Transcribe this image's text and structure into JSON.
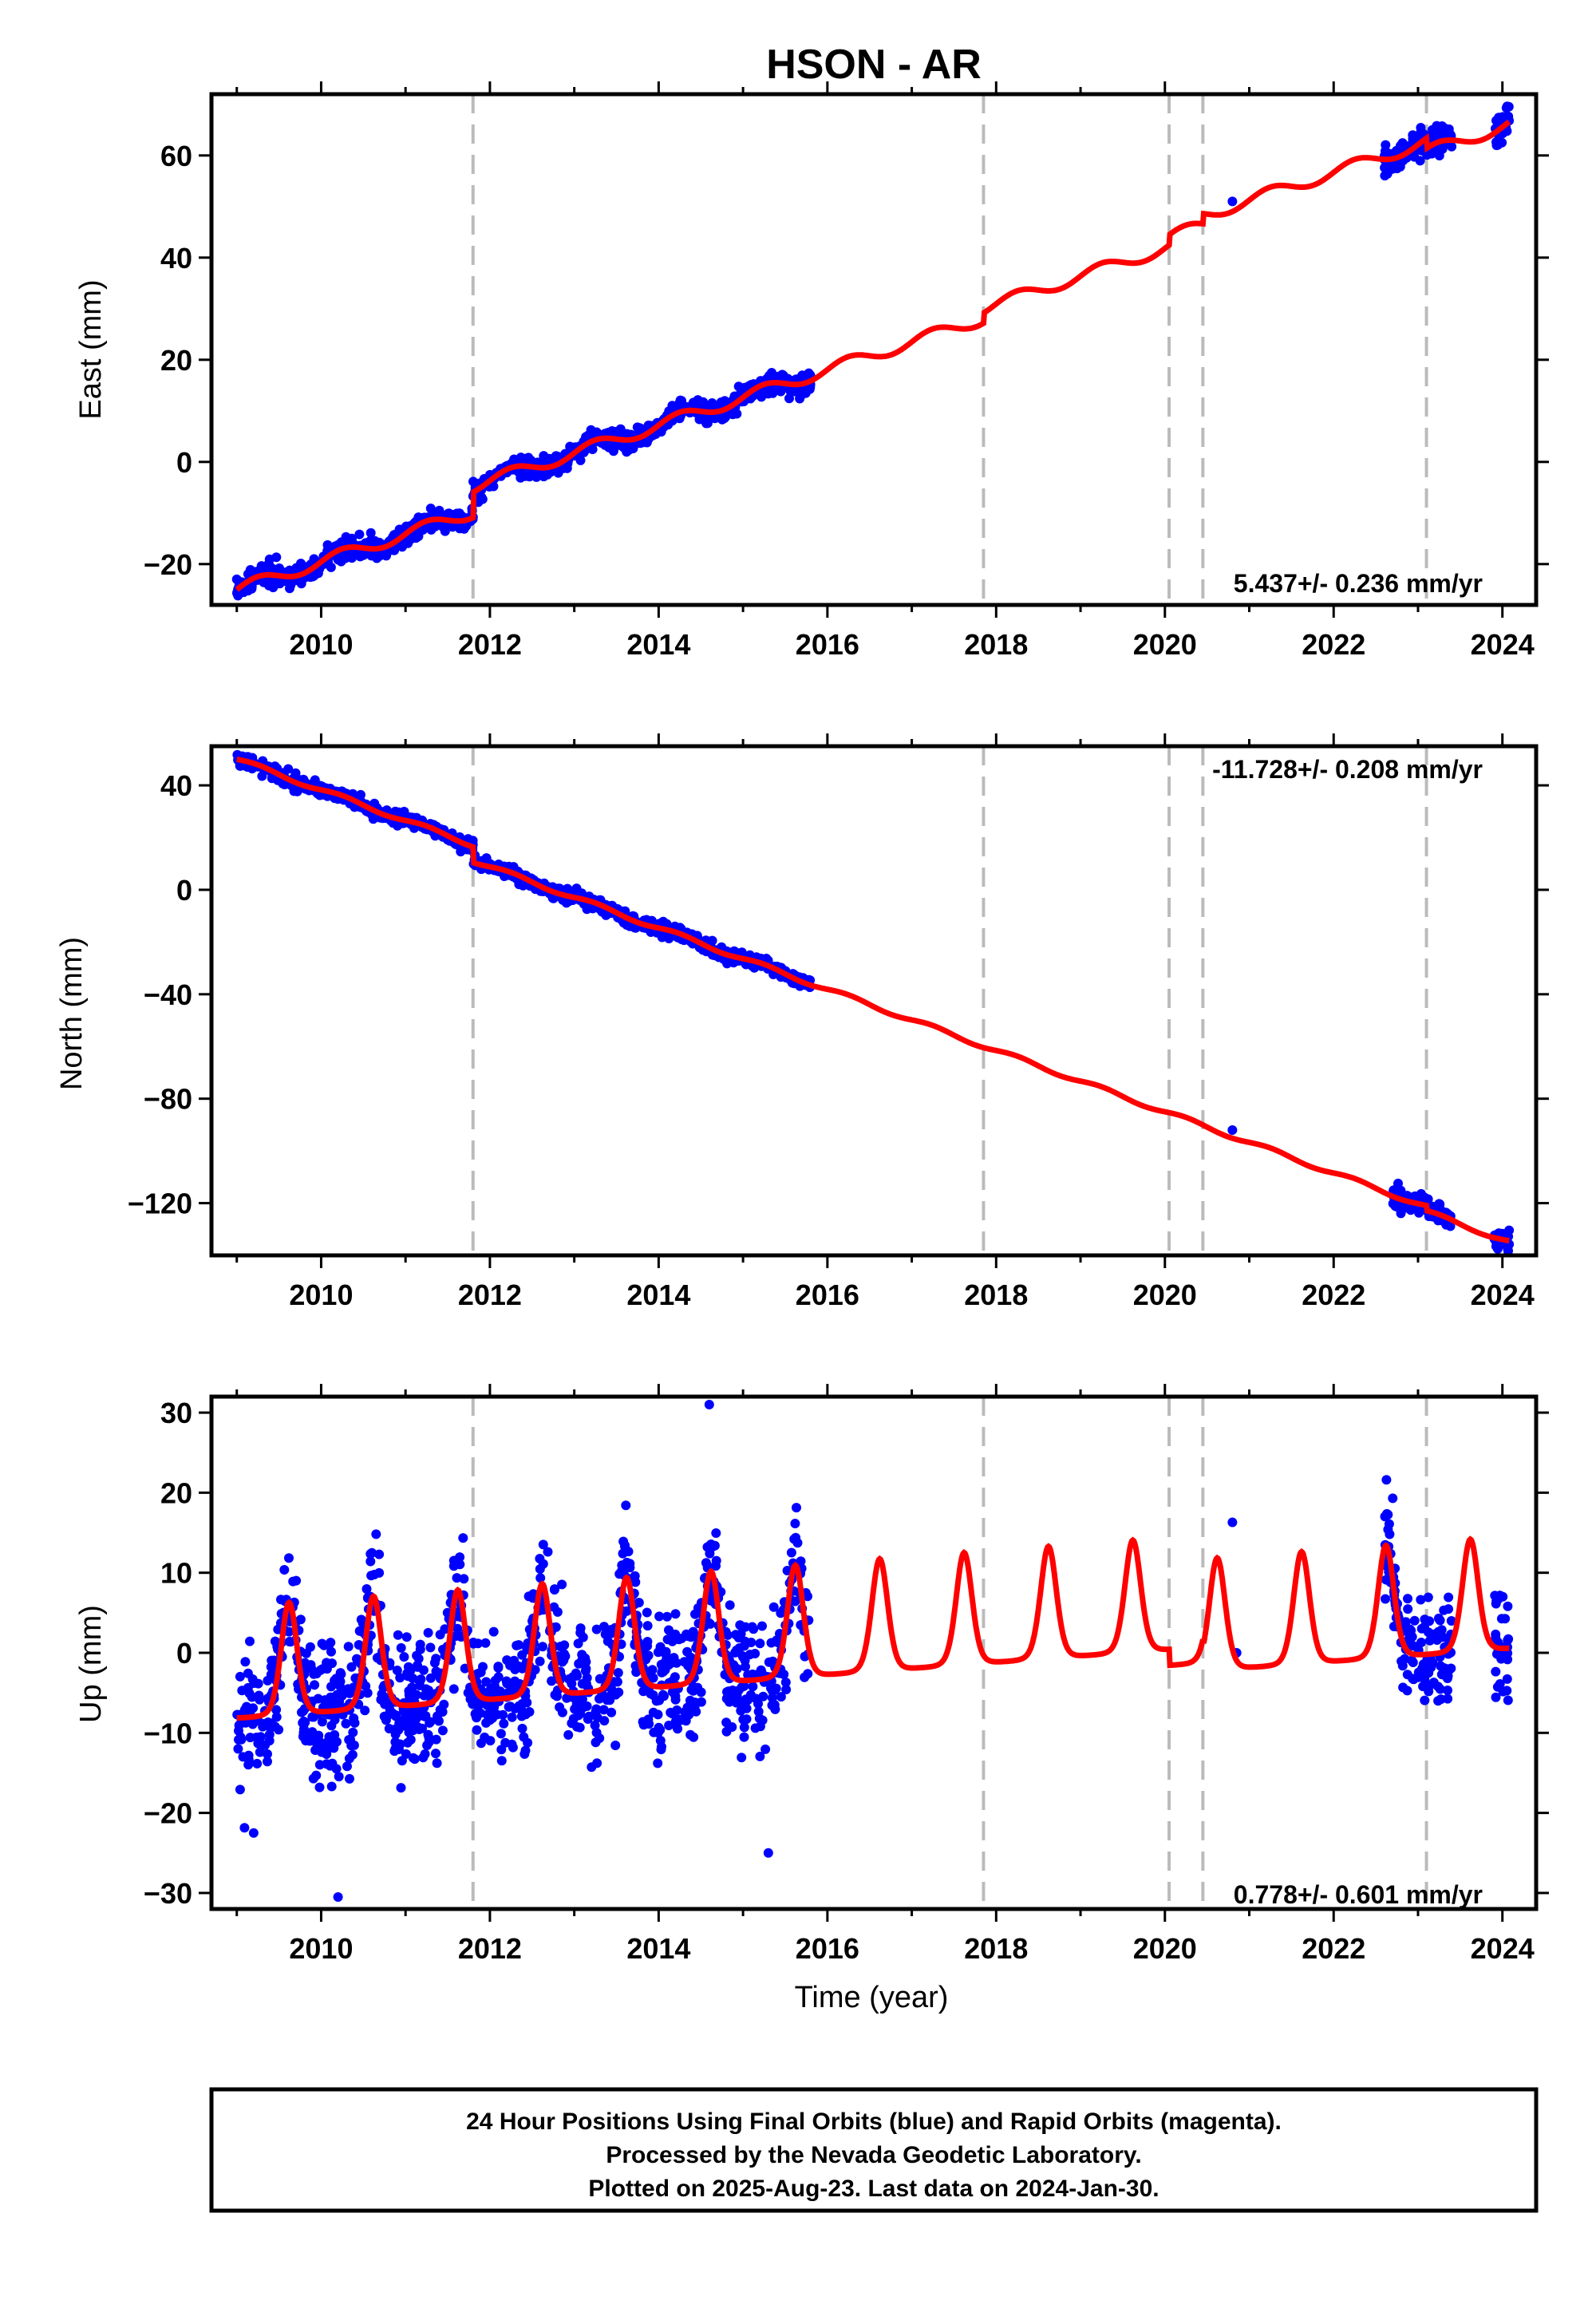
{
  "figure": {
    "title": "HSON - AR",
    "xlabel": "Time (year)",
    "footer_lines": [
      "24 Hour Positions Using Final Orbits (blue) and Rapid Orbits (magenta).",
      "Processed by the Nevada Geodetic Laboratory.",
      "Plotted on 2025-Aug-23. Last data on 2024-Jan-30."
    ]
  },
  "colors": {
    "observations": "#0000ff",
    "model": "#ff0000",
    "event_lines": "#bbbbbb",
    "frame": "#000000"
  },
  "chart_data": [
    {
      "type": "scatter",
      "component": "east",
      "ylabel": "East (mm)",
      "rate_text": "5.437+/- 0.236 mm/yr",
      "xlim": [
        2008.7,
        2024.4
      ],
      "ylim": [
        -28,
        72
      ],
      "xticks": [
        2010,
        2012,
        2014,
        2016,
        2018,
        2020,
        2022,
        2024
      ],
      "yticks": [
        -20,
        0,
        20,
        40,
        60
      ],
      "grid": false,
      "event_lines_x": [
        2011.8,
        2017.85,
        2020.05,
        2020.45,
        2023.1
      ],
      "model_params": {
        "offset_2009": -25.0,
        "rate": 5.437,
        "annual_amplitude": 1.2,
        "steps": [
          [
            2011.8,
            5.0
          ],
          [
            2017.85,
            2.0
          ],
          [
            2020.05,
            2.0
          ],
          [
            2020.45,
            2.0
          ],
          [
            2023.1,
            -2.0
          ]
        ]
      },
      "observation_segments": [
        {
          "start": 2009.0,
          "end": 2015.8,
          "scatter": 1.0,
          "seed": 11
        },
        {
          "start": 2022.6,
          "end": 2023.4,
          "scatter": 1.5,
          "seed": 12
        },
        {
          "start": 2023.9,
          "end": 2024.08,
          "scatter": 1.5,
          "seed": 13
        }
      ],
      "isolated_points": [
        [
          2020.8,
          51.0
        ]
      ]
    },
    {
      "type": "scatter",
      "component": "north",
      "ylabel": "North (mm)",
      "rate_text": "-11.728+/- 0.208 mm/yr",
      "xlim": [
        2008.7,
        2024.4
      ],
      "ylim": [
        -140,
        55
      ],
      "xticks": [
        2010,
        2012,
        2014,
        2016,
        2018,
        2020,
        2022,
        2024
      ],
      "yticks": [
        -120,
        -80,
        -40,
        0,
        40
      ],
      "grid": false,
      "event_lines_x": [
        2011.8,
        2017.85,
        2020.05,
        2020.45,
        2023.1
      ],
      "model_params": {
        "offset_2009": 50.0,
        "rate": -11.728,
        "annual_amplitude": 0.8,
        "steps": [
          [
            2011.8,
            -6.0
          ],
          [
            2023.1,
            -2.0
          ]
        ]
      },
      "observation_segments": [
        {
          "start": 2009.0,
          "end": 2015.8,
          "scatter": 1.2,
          "seed": 21
        },
        {
          "start": 2022.7,
          "end": 2023.4,
          "scatter": 1.8,
          "seed": 22
        },
        {
          "start": 2023.9,
          "end": 2024.08,
          "scatter": 1.8,
          "seed": 23
        }
      ],
      "isolated_points": [
        [
          2020.8,
          -92.0
        ]
      ]
    },
    {
      "type": "scatter",
      "component": "up",
      "ylabel": "Up (mm)",
      "rate_text": "0.778+/- 0.601 mm/yr",
      "xlim": [
        2008.7,
        2024.4
      ],
      "ylim": [
        -32,
        32
      ],
      "xticks": [
        2010,
        2012,
        2014,
        2016,
        2018,
        2020,
        2022,
        2024
      ],
      "yticks": [
        -30,
        -20,
        -10,
        0,
        10,
        20,
        30
      ],
      "grid": false,
      "event_lines_x": [
        2011.8,
        2017.85,
        2020.05,
        2020.45,
        2023.1
      ],
      "model_params": {
        "offset_2009": -4.0,
        "rate": 0.778,
        "annual_amplitude": 7.0,
        "peak_phase": 0.62,
        "sharpness": 3.0,
        "steps": [
          [
            2020.05,
            -2.0
          ],
          [
            2020.45,
            -1.0
          ]
        ]
      },
      "observation_segments": [
        {
          "start": 2009.0,
          "end": 2015.8,
          "scatter": 4.0,
          "seed": 31
        },
        {
          "start": 2022.6,
          "end": 2023.4,
          "scatter": 3.5,
          "seed": 32
        },
        {
          "start": 2023.9,
          "end": 2024.08,
          "scatter": 3.5,
          "seed": 33
        }
      ],
      "isolated_points": [
        [
          2009.2,
          -22.5
        ],
        [
          2010.2,
          -30.5
        ],
        [
          2014.6,
          31.0
        ],
        [
          2015.3,
          -25.0
        ],
        [
          2020.8,
          16.3
        ],
        [
          2020.85,
          0.0
        ],
        [
          2022.7,
          19.3
        ]
      ]
    }
  ]
}
